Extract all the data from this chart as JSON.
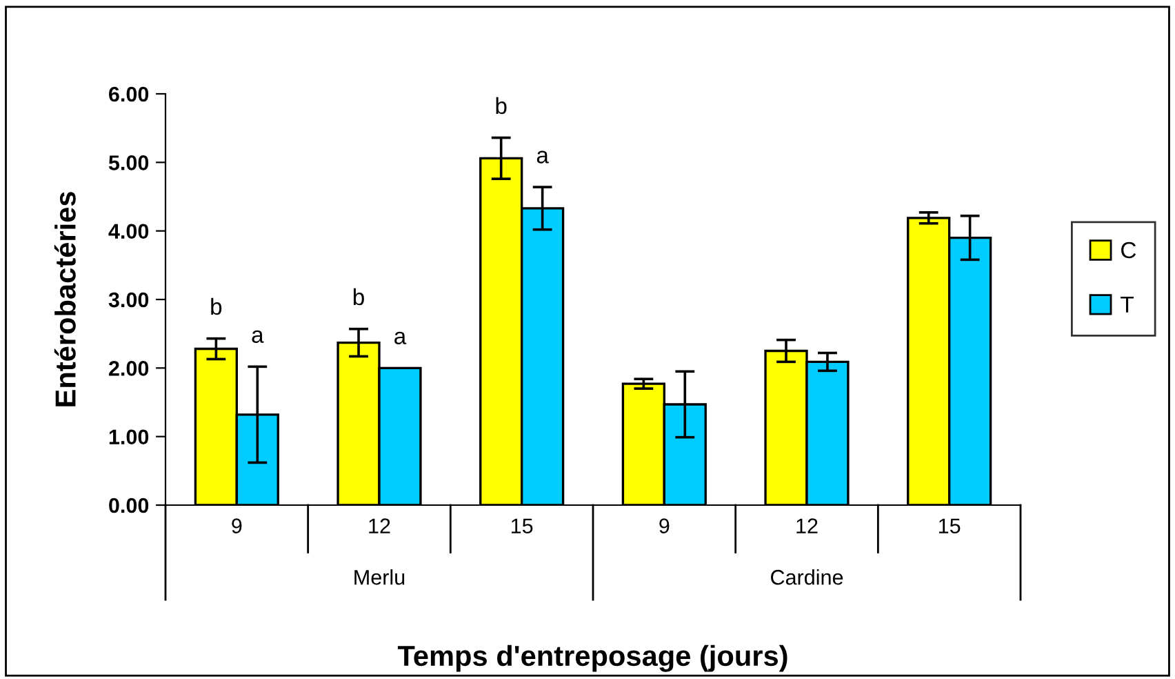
{
  "chart_data": {
    "type": "bar",
    "xlabel": "Temps d'entreposage (jours)",
    "ylabel": "Entérobactéries",
    "categories": [
      "9",
      "12",
      "15",
      "9",
      "12",
      "15"
    ],
    "series": [
      {
        "name": "C",
        "color": "#ffff00",
        "values": [
          2.28,
          2.37,
          5.06,
          1.77,
          2.25,
          4.19
        ],
        "errors": [
          0.15,
          0.2,
          0.3,
          0.07,
          0.16,
          0.08
        ],
        "value_labels": [
          "b",
          "b",
          "b",
          null,
          null,
          null
        ]
      },
      {
        "name": "T",
        "color": "#00ccff",
        "values": [
          1.32,
          2.0,
          4.33,
          1.47,
          2.09,
          3.9
        ],
        "errors": [
          0.7,
          null,
          0.31,
          0.48,
          0.13,
          0.32
        ],
        "value_labels": [
          "a",
          "a",
          "a",
          null,
          null,
          null
        ]
      }
    ],
    "annotations": [
      "Merlu",
      "Cardine"
    ],
    "ylim": [
      0,
      6
    ],
    "yticks": [
      {
        "value": 0,
        "label": "0.00"
      },
      {
        "value": 1,
        "label": "1.00"
      },
      {
        "value": 2,
        "label": "2.00"
      },
      {
        "value": 3,
        "label": "3.00"
      },
      {
        "value": 4,
        "label": "4.00"
      },
      {
        "value": 5,
        "label": "5.00"
      },
      {
        "value": 6,
        "label": "6.00"
      }
    ],
    "legend": "right",
    "grid": false
  }
}
